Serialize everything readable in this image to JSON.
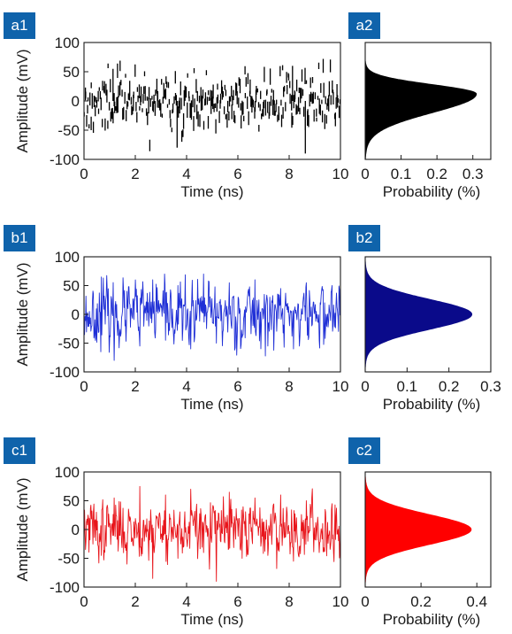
{
  "chart_data": [
    {
      "id": "a1",
      "type": "line",
      "panel_label": "a1",
      "xlabel": "Time (ns)",
      "ylabel": "Amplitude (mV)",
      "xlim": [
        0,
        10
      ],
      "ylim": [
        -100,
        100
      ],
      "xticks": [
        0,
        2,
        4,
        6,
        8,
        10
      ],
      "yticks": [
        -100,
        -50,
        0,
        50,
        100
      ],
      "series": [
        {
          "color": "#000000",
          "style": "sparse-spikes",
          "n_points": 320,
          "sigma_mV": 24,
          "range_mV": [
            -90,
            60
          ],
          "seed": 11
        }
      ],
      "x": [
        0.0,
        0.5,
        1.0,
        1.5,
        2.0,
        2.5,
        3.0,
        3.5,
        4.0,
        4.5,
        5.0,
        5.5,
        6.0,
        6.5,
        7.0,
        7.5,
        8.0,
        8.5,
        9.0,
        9.5,
        10.0
      ],
      "y": [
        10,
        -25,
        55,
        -35,
        20,
        -40,
        30,
        -80,
        25,
        -30,
        45,
        -20,
        35,
        -45,
        15,
        -30,
        60,
        -90,
        40,
        -35,
        20
      ]
    },
    {
      "id": "a2",
      "type": "area",
      "panel_label": "a2",
      "xlabel": "Probability (%)",
      "xlim": [
        0,
        0.35
      ],
      "ylim": [
        -100,
        100
      ],
      "xticks": [
        0,
        0.1,
        0.2,
        0.3
      ],
      "series": [
        {
          "color": "#000000",
          "peak": 0.31,
          "peak_at_mV": 12,
          "sigma_low_mV": 32,
          "sigma_high_mV": 16
        }
      ]
    },
    {
      "id": "b1",
      "type": "line",
      "panel_label": "b1",
      "xlabel": "Time (ns)",
      "ylabel": "Amplitude (mV)",
      "xlim": [
        0,
        10
      ],
      "ylim": [
        -100,
        100
      ],
      "xticks": [
        0,
        2,
        4,
        6,
        8,
        10
      ],
      "yticks": [
        -100,
        -50,
        0,
        50,
        100
      ],
      "series": [
        {
          "color": "#1f2fd6",
          "style": "dense-noise",
          "n_points": 520,
          "sigma_mV": 26,
          "range_mV": [
            -80,
            70
          ],
          "seed": 23
        }
      ],
      "x": [
        0.0,
        0.5,
        1.0,
        1.5,
        2.0,
        2.5,
        3.0,
        3.5,
        4.0,
        4.5,
        5.0,
        5.5,
        6.0,
        6.5,
        7.0,
        7.5,
        8.0,
        8.5,
        9.0,
        9.5,
        10.0
      ],
      "y": [
        -5,
        65,
        -80,
        40,
        -55,
        60,
        -45,
        50,
        -60,
        70,
        -50,
        55,
        -40,
        60,
        -55,
        45,
        -60,
        55,
        -45,
        50,
        10
      ]
    },
    {
      "id": "b2",
      "type": "area",
      "panel_label": "b2",
      "xlabel": "Probability (%)",
      "xlim": [
        0,
        0.3
      ],
      "ylim": [
        -100,
        100
      ],
      "xticks": [
        0,
        0.1,
        0.2,
        0.3
      ],
      "series": [
        {
          "color": "#0a0a8a",
          "peak": 0.255,
          "peak_at_mV": 0,
          "sigma_low_mV": 26,
          "sigma_high_mV": 26
        }
      ]
    },
    {
      "id": "c1",
      "type": "line",
      "panel_label": "c1",
      "xlabel": "Time (ns)",
      "ylabel": "Amplitude (mV)",
      "xlim": [
        0,
        10
      ],
      "ylim": [
        -100,
        100
      ],
      "xticks": [
        0,
        2,
        4,
        6,
        8,
        10
      ],
      "yticks": [
        -100,
        -50,
        0,
        50,
        100
      ],
      "series": [
        {
          "color": "#e8151b",
          "style": "dense-noise",
          "n_points": 520,
          "sigma_mV": 24,
          "range_mV": [
            -95,
            75
          ],
          "seed": 37
        }
      ],
      "x": [
        0.0,
        0.5,
        1.0,
        1.5,
        2.0,
        2.5,
        3.0,
        3.5,
        4.0,
        4.5,
        5.0,
        5.5,
        6.0,
        6.5,
        7.0,
        7.5,
        8.0,
        8.5,
        9.0,
        9.5,
        10.0
      ],
      "y": [
        20,
        -45,
        55,
        -60,
        75,
        -85,
        60,
        -50,
        70,
        -40,
        -90,
        65,
        -50,
        55,
        -45,
        60,
        -55,
        50,
        -40,
        45,
        5
      ]
    },
    {
      "id": "c2",
      "type": "area",
      "panel_label": "c2",
      "xlabel": "Probability (%)",
      "xlim": [
        0,
        0.45
      ],
      "ylim": [
        -100,
        100
      ],
      "xticks": [
        0,
        0.2,
        0.4
      ],
      "series": [
        {
          "color": "#ff0000",
          "peak": 0.38,
          "peak_at_mV": 0,
          "sigma_low_mV": 26,
          "sigma_high_mV": 26
        }
      ]
    }
  ]
}
